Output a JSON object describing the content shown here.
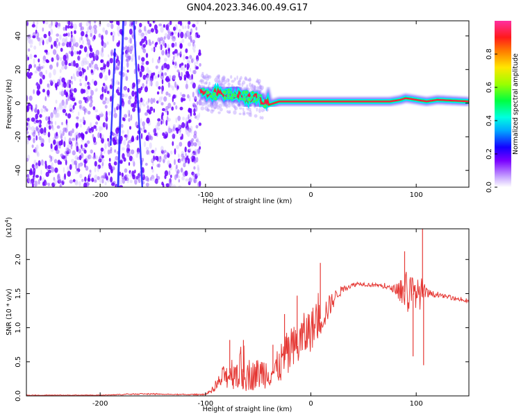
{
  "title": "GN04.2023.346.00.49.G17",
  "colors": {
    "snr_line": "#e53935",
    "spec_band": "#ff1744",
    "spec_glow": "#00e5ff",
    "noise_dark": "#6a00ff",
    "noise_light": "#d8c8ff"
  },
  "chart_data": [
    {
      "type": "heatmap",
      "name": "spectrogram",
      "xlabel": "Height of straight line (km)",
      "ylabel": "Frequency (Hz)",
      "xlim": [
        -270,
        150
      ],
      "ylim": [
        -50,
        49
      ],
      "xticks": [
        -200,
        -100,
        0,
        100
      ],
      "xtick_labels": [
        "-200",
        "-100",
        "0",
        "100"
      ],
      "yticks": [
        -40,
        -20,
        0,
        20,
        40
      ],
      "ytick_labels": [
        "-40",
        "-20",
        "0",
        "20",
        "40"
      ],
      "noise_region_x": [
        -270,
        -105
      ],
      "signal_track": {
        "x": [
          -105,
          -95,
          -85,
          -75,
          -65,
          -58,
          -52,
          -48,
          -44,
          -40,
          -30,
          -20,
          -10,
          0,
          10,
          20,
          40,
          60,
          75,
          85,
          90,
          100,
          110,
          120,
          150
        ],
        "freq": [
          8,
          6,
          5,
          5,
          4,
          4,
          3,
          2,
          0,
          -1,
          1,
          1,
          1,
          1,
          1,
          1,
          1,
          1,
          1,
          2,
          3,
          2,
          1,
          2,
          1
        ]
      },
      "colorbar": {
        "label": "Normalized spectral amplitude",
        "range": [
          0.0,
          1.0
        ],
        "ticks": [
          0.0,
          0.2,
          0.4,
          0.6,
          0.8
        ],
        "tick_labels": [
          "0.0",
          "0.2",
          "0.4",
          "0.6",
          "0.8"
        ]
      }
    },
    {
      "type": "line",
      "name": "snr",
      "xlabel": "Height of straight line (km)",
      "ylabel": "SNR (10 * v/v)",
      "scale_note": "(x10",
      "scale_exp": "4",
      "scale_close": ")",
      "xlim": [
        -270,
        150
      ],
      "ylim": [
        0,
        2.45
      ],
      "xticks": [
        -200,
        -100,
        0,
        100
      ],
      "xtick_labels": [
        "-200",
        "-100",
        "0",
        "100"
      ],
      "yticks": [
        0.0,
        0.5,
        1.0,
        1.5,
        2.0
      ],
      "ytick_labels": [
        "0.0",
        "0.5",
        "1.0",
        "1.5",
        "2.0"
      ],
      "envelope": {
        "x": [
          -270,
          -200,
          -160,
          -130,
          -100,
          -92,
          -85,
          -75,
          -65,
          -55,
          -45,
          -35,
          -25,
          -15,
          -5,
          5,
          15,
          25,
          35,
          45,
          55,
          65,
          75,
          80,
          85,
          90,
          95,
          100,
          105,
          110,
          120,
          130,
          140,
          150
        ],
        "mean": [
          0.01,
          0.01,
          0.03,
          0.02,
          0.02,
          0.08,
          0.25,
          0.35,
          0.35,
          0.3,
          0.35,
          0.35,
          0.55,
          0.7,
          0.9,
          1.05,
          1.25,
          1.5,
          1.6,
          1.65,
          1.63,
          1.62,
          1.58,
          1.57,
          1.55,
          1.52,
          1.5,
          1.5,
          1.5,
          1.5,
          1.48,
          1.45,
          1.42,
          1.38
        ],
        "spread": [
          0.005,
          0.005,
          0.01,
          0.005,
          0.01,
          0.05,
          0.15,
          0.25,
          0.3,
          0.22,
          0.25,
          0.2,
          0.35,
          0.35,
          0.35,
          0.3,
          0.2,
          0.08,
          0.04,
          0.03,
          0.03,
          0.03,
          0.04,
          0.06,
          0.2,
          0.35,
          0.3,
          0.2,
          0.25,
          0.08,
          0.03,
          0.03,
          0.03,
          0.03
        ]
      },
      "spikes": [
        {
          "x": -77,
          "y": 0.82
        },
        {
          "x": -64,
          "y": 0.82
        },
        {
          "x": -36,
          "y": 0.75
        },
        {
          "x": -25,
          "y": 1.2
        },
        {
          "x": -13,
          "y": 1.47
        },
        {
          "x": 9,
          "y": 1.95
        },
        {
          "x": 89,
          "y": 2.12
        },
        {
          "x": 106,
          "y": 2.45
        },
        {
          "x": 107,
          "y": 0.45
        },
        {
          "x": 97,
          "y": 0.58
        }
      ]
    }
  ]
}
